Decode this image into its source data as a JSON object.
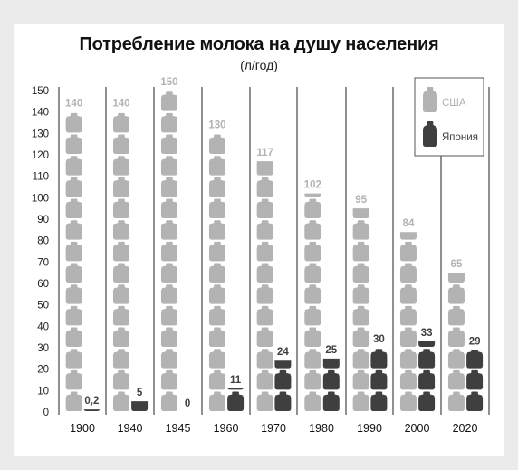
{
  "title": "Потребление молока на душу населения",
  "subtitle": "(л/год)",
  "colors": {
    "usa": "#b3b3b3",
    "japan": "#3f3f3f",
    "card": "#ffffff",
    "page": "#ebebeb"
  },
  "chart_data": {
    "type": "bar",
    "title": "Потребление молока на душу населения",
    "subtitle": "(л/год)",
    "xlabel": "",
    "ylabel": "",
    "ylim": [
      0,
      150
    ],
    "yticks": [
      0,
      10,
      20,
      30,
      40,
      50,
      60,
      70,
      80,
      90,
      100,
      110,
      120,
      130,
      140,
      150
    ],
    "categories": [
      "1900",
      "1940",
      "1945",
      "1960",
      "1970",
      "1980",
      "1990",
      "2000",
      "2020"
    ],
    "series": [
      {
        "name": "США",
        "values": [
          140,
          140,
          150,
          130,
          117,
          102,
          95,
          84,
          65
        ],
        "labels": [
          "140",
          "140",
          "150",
          "130",
          "117",
          "102",
          "95",
          "84",
          "65"
        ]
      },
      {
        "name": "Япония",
        "values": [
          0.2,
          5,
          0,
          11,
          24,
          25,
          30,
          33,
          29
        ],
        "labels": [
          "0,2",
          "5",
          "0",
          "11",
          "24",
          "25",
          "30",
          "33",
          "29"
        ]
      }
    ],
    "grid": false,
    "legend": "top-right"
  }
}
